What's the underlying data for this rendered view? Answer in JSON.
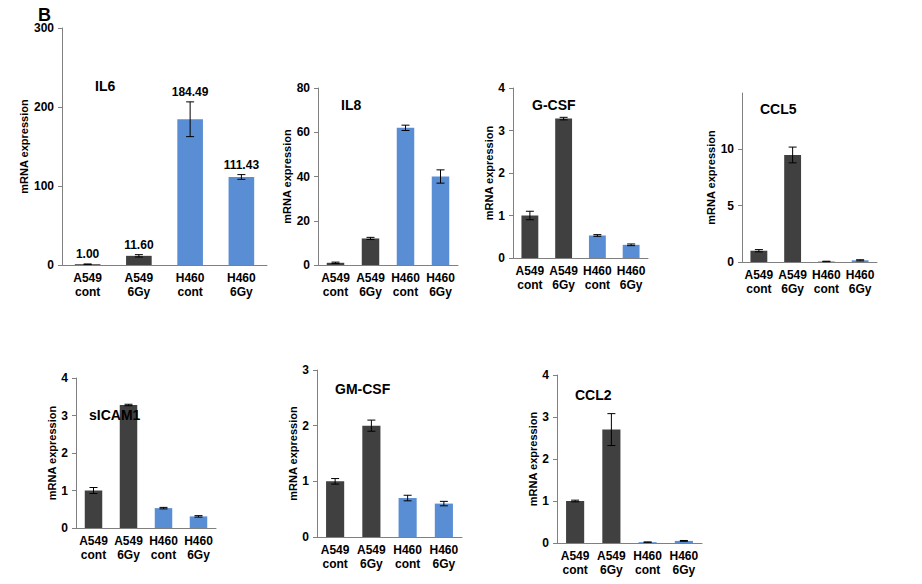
{
  "panel_label": "B",
  "chart_data": [
    {
      "type": "bar",
      "title": "IL6",
      "y_label": "mRNA expression",
      "categories": [
        "A549 cont",
        "A549 6Gy",
        "H460 cont",
        "H460 6Gy"
      ],
      "values": [
        1.0,
        11.6,
        184.49,
        111.43
      ],
      "value_labels": [
        "1.00",
        "11.60",
        "184.49",
        "111.43"
      ],
      "data_labels": true,
      "errors": [
        0.3,
        1.5,
        22,
        3
      ],
      "colors": [
        "#404040",
        "#404040",
        "#5a8ed4",
        "#5a8ed4"
      ],
      "ylim": [
        0,
        300
      ],
      "yticks": [
        0,
        100,
        200,
        300
      ],
      "grid": false
    },
    {
      "type": "bar",
      "title": "IL8",
      "y_label": "mRNA expression",
      "categories": [
        "A549 cont",
        "A549 6Gy",
        "H460 cont",
        "H460 6Gy"
      ],
      "values": [
        1,
        12,
        62,
        40
      ],
      "errors": [
        0.3,
        0.5,
        1.2,
        3
      ],
      "colors": [
        "#404040",
        "#404040",
        "#5a8ed4",
        "#5a8ed4"
      ],
      "ylim": [
        0,
        80
      ],
      "yticks": [
        0,
        20,
        40,
        60,
        80
      ],
      "grid": false
    },
    {
      "type": "bar",
      "title": "G-CSF",
      "y_label": "mRNA expression",
      "categories": [
        "A549 cont",
        "A549 6Gy",
        "H460 cont",
        "H460 6Gy"
      ],
      "values": [
        1.0,
        3.28,
        0.53,
        0.31
      ],
      "errors": [
        0.1,
        0.03,
        0.02,
        0.02
      ],
      "colors": [
        "#404040",
        "#404040",
        "#5a8ed4",
        "#5a8ed4"
      ],
      "ylim": [
        0,
        4
      ],
      "yticks": [
        0,
        1,
        2,
        3,
        4
      ],
      "grid": false
    },
    {
      "type": "bar",
      "title": "CCL5",
      "y_label": "mRNA expression",
      "categories": [
        "A549 cont",
        "A549 6Gy",
        "H460 cont",
        "H460 6Gy"
      ],
      "values": [
        1.0,
        9.5,
        0.05,
        0.15
      ],
      "errors": [
        0.1,
        0.7,
        0.02,
        0.05
      ],
      "colors": [
        "#404040",
        "#404040",
        "#5a8ed4",
        "#5a8ed4"
      ],
      "ylim": [
        0,
        15
      ],
      "yticks": [
        0,
        5,
        10
      ],
      "grid": false
    },
    {
      "type": "bar",
      "title": "sICAM1",
      "y_label": "mRNA expression",
      "categories": [
        "A549 cont",
        "A549 6Gy",
        "H460 cont",
        "H460 6Gy"
      ],
      "values": [
        1.0,
        3.28,
        0.53,
        0.31
      ],
      "errors": [
        0.08,
        0.02,
        0.02,
        0.02
      ],
      "colors": [
        "#404040",
        "#404040",
        "#5a8ed4",
        "#5a8ed4"
      ],
      "ylim": [
        0,
        4
      ],
      "yticks": [
        0,
        1,
        2,
        3,
        4
      ],
      "grid": false
    },
    {
      "type": "bar",
      "title": "GM-CSF",
      "y_label": "mRNA expression",
      "categories": [
        "A549 cont",
        "A549 6Gy",
        "H460 cont",
        "H460 6Gy"
      ],
      "values": [
        1.0,
        2.0,
        0.7,
        0.6
      ],
      "errors": [
        0.05,
        0.1,
        0.05,
        0.04
      ],
      "colors": [
        "#404040",
        "#404040",
        "#5a8ed4",
        "#5a8ed4"
      ],
      "ylim": [
        0,
        3
      ],
      "yticks": [
        0,
        1,
        2,
        3
      ],
      "grid": false
    },
    {
      "type": "bar",
      "title": "CCL2",
      "y_label": "mRNA expression",
      "categories": [
        "A549 cont",
        "A549 6Gy",
        "H460 cont",
        "H460 6Gy"
      ],
      "values": [
        1.0,
        2.7,
        0.02,
        0.05
      ],
      "errors": [
        0.02,
        0.38,
        0.005,
        0.01
      ],
      "colors": [
        "#404040",
        "#404040",
        "#5a8ed4",
        "#5a8ed4"
      ],
      "ylim": [
        0,
        4
      ],
      "yticks": [
        0,
        1,
        2,
        3,
        4
      ],
      "grid": false
    }
  ]
}
